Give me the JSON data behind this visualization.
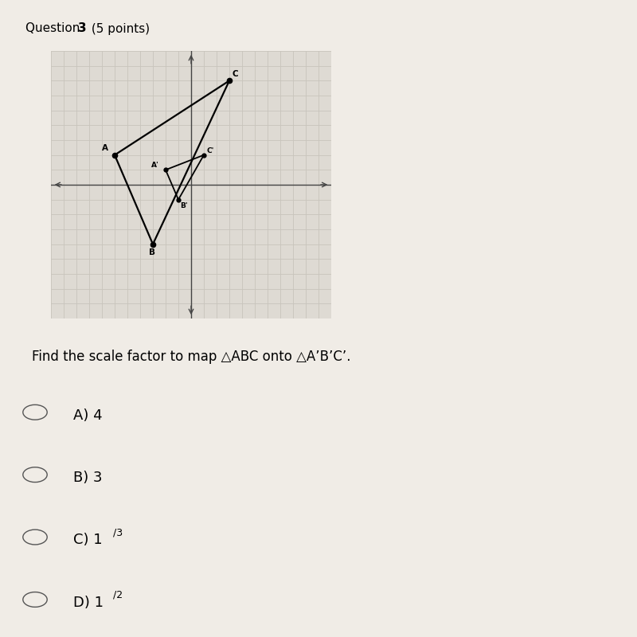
{
  "title_normal": "Question ",
  "title_bold": "3",
  "title_rest": " (5 points)",
  "bg_color": "#f0ece6",
  "graph_bg": "#dedad3",
  "grid_color": "#c8c4bc",
  "axis_color": "#444444",
  "ABC": {
    "A": [
      -6,
      2
    ],
    "B": [
      -3,
      -4
    ],
    "C": [
      3,
      7
    ]
  },
  "A1B1C1": {
    "A1": [
      -2,
      1
    ],
    "B1": [
      -1,
      -1
    ],
    "C1": [
      1,
      2
    ]
  },
  "xlim": [
    -11,
    11
  ],
  "ylim": [
    -9,
    9
  ],
  "question_text": "Find the scale factor to map △ABC onto △A’B’C’.",
  "choices": [
    {
      "label": "A)",
      "value": "4",
      "has_fraction": false
    },
    {
      "label": "B)",
      "value": "3",
      "has_fraction": false
    },
    {
      "label": "C)",
      "main": "1",
      "super": "/3",
      "has_fraction": true
    },
    {
      "label": "D)",
      "main": "1",
      "super": "/2",
      "has_fraction": true
    }
  ]
}
